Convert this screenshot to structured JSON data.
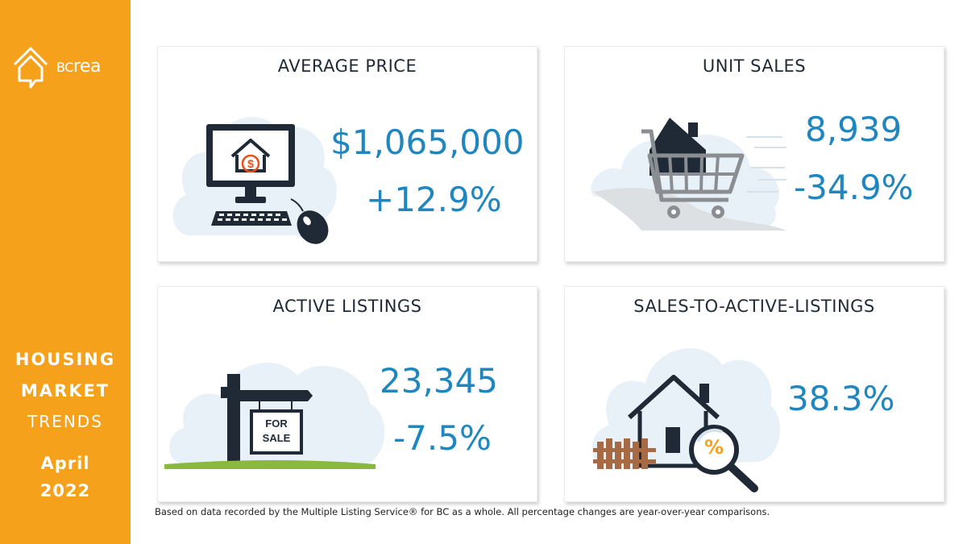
{
  "brand": {
    "logo_bc": "BC",
    "logo_rea": "rea"
  },
  "sidebar": {
    "line1": "HOUSING",
    "line2": "MARKET",
    "line3": "TRENDS",
    "month": "April",
    "year": "2022"
  },
  "cards": {
    "average_price": {
      "title": "AVERAGE PRICE",
      "value": "$1,065,000",
      "change": "+12.9%"
    },
    "unit_sales": {
      "title": "UNIT SALES",
      "value": "8,939",
      "change": "-34.9%"
    },
    "active_listings": {
      "title": "ACTIVE LISTINGS",
      "value": "23,345",
      "change": "-7.5%",
      "sign_text_1": "FOR",
      "sign_text_2": "SALE"
    },
    "sales_to_active": {
      "title": "SALES-TO-ACTIVE-LISTINGS",
      "value": "38.3%",
      "magnifier_symbol": "%"
    }
  },
  "footnote": "Based on data recorded by the Multiple Listing Service® for BC as a whole. All percentage changes are year-over-year comparisons.",
  "colors": {
    "sidebar": "#f5a11c",
    "accent_blue": "#1f86bf",
    "dark_navy": "#1f2a36",
    "cloud": "#e9f1f8"
  }
}
